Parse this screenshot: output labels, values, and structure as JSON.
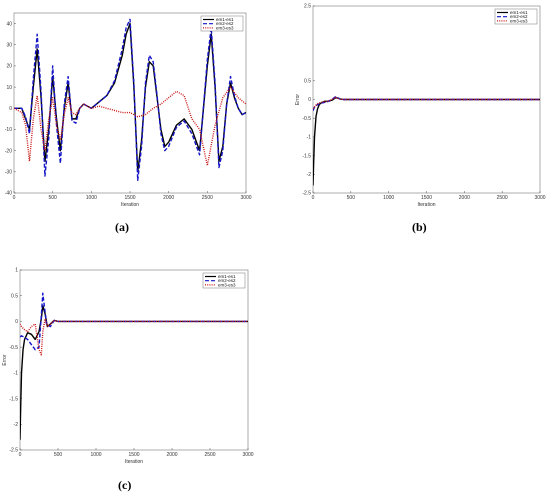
{
  "colors": {
    "s1": "#000000",
    "s2": "#1414c8",
    "s3": "#c81414"
  },
  "panels": [
    {
      "caption": "(a)",
      "ylabel": "Error",
      "xlabel": "Iteration",
      "xticks": [
        "0",
        "500",
        "1000",
        "1500",
        "2000",
        "2500",
        "3000"
      ],
      "yticks": [
        "40",
        "30",
        "20",
        "10",
        "0",
        "-10",
        "-20",
        "-30",
        "-40"
      ],
      "legend": [
        "em1-es1",
        "em2-es2",
        "em3-es3"
      ]
    },
    {
      "caption": "(b)",
      "ylabel": "Error",
      "xlabel": "Iteration",
      "xticks": [
        "0",
        "500",
        "1000",
        "1500",
        "2000",
        "2500",
        "3000"
      ],
      "yticks": [
        "0.5",
        "0",
        "-0.5",
        "-1",
        "-1.5",
        "-2",
        "-2.5"
      ],
      "yticks_top": "2.5",
      "legend": [
        "em1-es1",
        "em2-es2",
        "em3-es3"
      ]
    },
    {
      "caption": "(c)",
      "ylabel": "Error",
      "xlabel": "Iteration",
      "xticks": [
        "0",
        "500",
        "1000",
        "1500",
        "2000",
        "2500",
        "3000"
      ],
      "yticks": [
        "1",
        "0.5",
        "0",
        "-0.5",
        "-1",
        "-1.5",
        "-2",
        "-2.5"
      ],
      "legend": [
        "em1-es1",
        "em2-es2",
        "em3-es3"
      ]
    }
  ],
  "chart_data": [
    {
      "type": "line",
      "xlabel": "Iteration",
      "ylabel": "Error",
      "xlim": [
        0,
        3000
      ],
      "ylim": [
        -40,
        45
      ],
      "series": [
        {
          "name": "em1-es1",
          "x": [
            0,
            100,
            150,
            200,
            250,
            300,
            350,
            400,
            450,
            500,
            550,
            600,
            650,
            700,
            750,
            800,
            850,
            900,
            950,
            1000,
            1100,
            1200,
            1300,
            1400,
            1450,
            1500,
            1550,
            1600,
            1650,
            1700,
            1750,
            1800,
            1850,
            1900,
            1950,
            2000,
            2100,
            2200,
            2300,
            2400,
            2500,
            2550,
            2600,
            2650,
            2700,
            2750,
            2800,
            2850,
            2900,
            2950,
            3000
          ],
          "y": [
            0,
            0,
            -5,
            -10,
            10,
            28,
            5,
            -25,
            -10,
            15,
            -5,
            -20,
            0,
            12,
            -5,
            -5,
            0,
            2,
            1,
            0,
            3,
            6,
            12,
            25,
            35,
            40,
            10,
            -30,
            -15,
            10,
            22,
            20,
            5,
            -10,
            -18,
            -16,
            -8,
            -5,
            -10,
            -20,
            20,
            35,
            10,
            -25,
            -18,
            2,
            12,
            5,
            0,
            -3,
            -2
          ]
        },
        {
          "name": "em2-es2",
          "x": [
            0,
            100,
            150,
            200,
            250,
            300,
            350,
            400,
            450,
            500,
            550,
            600,
            650,
            700,
            750,
            800,
            850,
            900,
            950,
            1000,
            1100,
            1200,
            1300,
            1400,
            1450,
            1500,
            1550,
            1600,
            1650,
            1700,
            1750,
            1800,
            1850,
            1900,
            1950,
            2000,
            2100,
            2200,
            2300,
            2400,
            2500,
            2550,
            2600,
            2650,
            2700,
            2750,
            2800,
            2850,
            2900,
            2950,
            3000
          ],
          "y": [
            0,
            0,
            -4,
            -12,
            14,
            35,
            8,
            -32,
            -14,
            20,
            -8,
            -26,
            2,
            15,
            -6,
            -7,
            0,
            2,
            1,
            0,
            3,
            6,
            13,
            28,
            38,
            42,
            12,
            -34,
            -18,
            12,
            25,
            22,
            6,
            -12,
            -20,
            -18,
            -9,
            -6,
            -12,
            -22,
            23,
            38,
            12,
            -28,
            -20,
            2,
            15,
            6,
            0,
            -3,
            -2
          ]
        },
        {
          "name": "em3-es3",
          "x": [
            0,
            100,
            150,
            200,
            250,
            300,
            350,
            400,
            450,
            500,
            550,
            600,
            650,
            700,
            750,
            800,
            850,
            900,
            950,
            1000,
            1100,
            1200,
            1300,
            1400,
            1500,
            1600,
            1700,
            1800,
            1900,
            2000,
            2100,
            2200,
            2300,
            2400,
            2500,
            2600,
            2700,
            2800,
            2900,
            3000
          ],
          "y": [
            0,
            -2,
            -8,
            -25,
            -5,
            6,
            -10,
            -20,
            -5,
            5,
            -8,
            -15,
            -3,
            5,
            -2,
            -3,
            0,
            2,
            1,
            0,
            1,
            0,
            -1,
            -2,
            -2,
            -4,
            -3,
            0,
            2,
            5,
            8,
            6,
            -5,
            -10,
            -27,
            -8,
            5,
            10,
            5,
            2
          ]
        }
      ]
    },
    {
      "type": "line",
      "xlabel": "Iteration",
      "ylabel": "Error",
      "xlim": [
        0,
        3000
      ],
      "ylim": [
        -2.5,
        2.5
      ],
      "series": [
        {
          "name": "em1-es1",
          "x": [
            0,
            10,
            20,
            40,
            60,
            80,
            100,
            150,
            200,
            250,
            300,
            350,
            400,
            500,
            1000,
            2000,
            3000
          ],
          "y": [
            -2.3,
            -1.6,
            -1.0,
            -0.45,
            -0.25,
            -0.15,
            -0.1,
            -0.05,
            -0.05,
            -0.02,
            0.05,
            0.02,
            0,
            0,
            0,
            0,
            0
          ]
        },
        {
          "name": "em2-es2",
          "x": [
            0,
            20,
            50,
            100,
            150,
            200,
            250,
            300,
            350,
            400,
            500,
            1000,
            2000,
            3000
          ],
          "y": [
            -0.3,
            -0.2,
            -0.15,
            -0.1,
            -0.08,
            -0.05,
            0.0,
            0.08,
            0.02,
            0,
            0,
            0,
            0,
            0
          ]
        },
        {
          "name": "em3-es3",
          "x": [
            0,
            20,
            50,
            100,
            150,
            200,
            250,
            300,
            350,
            400,
            500,
            1000,
            2000,
            3000
          ],
          "y": [
            -0.25,
            -0.2,
            -0.12,
            -0.08,
            -0.06,
            -0.04,
            0.0,
            0.06,
            0.01,
            0,
            0,
            0,
            0,
            0
          ]
        }
      ]
    },
    {
      "type": "line",
      "xlabel": "Iteration",
      "ylabel": "Error",
      "xlim": [
        0,
        3000
      ],
      "ylim": [
        -2.5,
        1
      ],
      "series": [
        {
          "name": "em1-es1",
          "x": [
            0,
            10,
            20,
            40,
            60,
            100,
            150,
            200,
            250,
            280,
            300,
            330,
            360,
            400,
            450,
            500,
            1000,
            2000,
            3000
          ],
          "y": [
            -2.3,
            -1.6,
            -1.0,
            -0.55,
            -0.35,
            -0.22,
            -0.25,
            -0.35,
            -0.2,
            0.05,
            0.3,
            0.15,
            -0.1,
            -0.05,
            0.02,
            0,
            0,
            0,
            0
          ]
        },
        {
          "name": "em2-es2",
          "x": [
            0,
            20,
            50,
            100,
            150,
            200,
            250,
            280,
            300,
            320,
            350,
            400,
            450,
            500,
            1000,
            2000,
            3000
          ],
          "y": [
            -0.3,
            -0.28,
            -0.3,
            -0.35,
            -0.45,
            -0.55,
            -0.5,
            0.1,
            0.55,
            0.3,
            -0.05,
            -0.1,
            0.02,
            0,
            0,
            0,
            0
          ]
        },
        {
          "name": "em3-es3",
          "x": [
            0,
            20,
            50,
            100,
            150,
            200,
            250,
            280,
            300,
            330,
            360,
            400,
            450,
            500,
            1000,
            2000,
            3000
          ],
          "y": [
            -0.05,
            -0.1,
            -0.15,
            -0.2,
            -0.1,
            -0.05,
            -0.55,
            -0.65,
            -0.2,
            0.05,
            -0.1,
            -0.05,
            0.02,
            0,
            0,
            0,
            0
          ]
        }
      ]
    }
  ]
}
